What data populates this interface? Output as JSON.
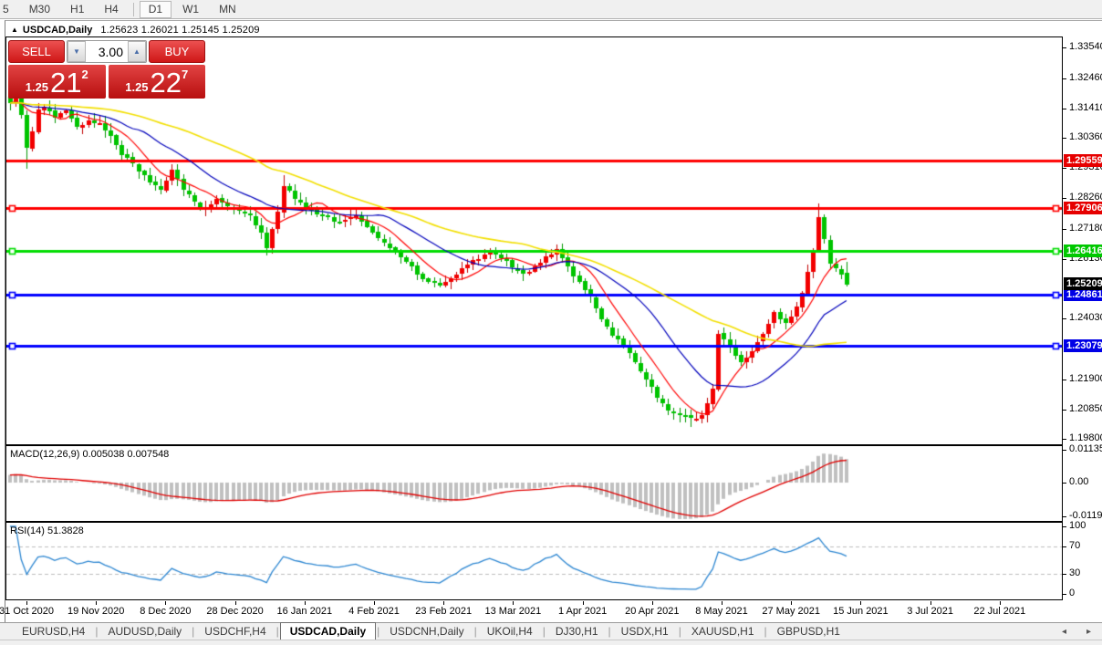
{
  "toolbar": {
    "timeframes": [
      {
        "label": "5",
        "active": false
      },
      {
        "label": "M30",
        "active": false
      },
      {
        "label": "H1",
        "active": false
      },
      {
        "label": "H4",
        "active": false
      },
      {
        "separator": true
      },
      {
        "label": "D1",
        "active": true
      },
      {
        "label": "W1",
        "active": false
      },
      {
        "label": "MN",
        "active": false
      }
    ]
  },
  "chart_window": {
    "title": {
      "marker": "▲",
      "symbol": "USDCAD,Daily",
      "ohlc": "1.25623 1.26021 1.25145 1.25209"
    },
    "trade_panel": {
      "sell_label": "SELL",
      "buy_label": "BUY",
      "volume": "3.00",
      "spin_down_icon": "▼",
      "spin_up_icon": "▲",
      "sell_price": {
        "small": "1.25",
        "big": "21",
        "sup": "2"
      },
      "buy_price": {
        "small": "1.25",
        "big": "22",
        "sup": "7"
      }
    }
  },
  "chart_data": {
    "type": "candlestick",
    "symbol": "USDCAD",
    "timeframe": "Daily",
    "color_convention": {
      "bull_up": "#F20000",
      "bull_border": "#C00000",
      "bear_down": "#00C400",
      "bear_border": "#009600"
    },
    "y_axis": {
      "ticks": [
        1.3354,
        1.3246,
        1.3141,
        1.3036,
        1.2931,
        1.2826,
        1.2718,
        1.2613,
        1.2403,
        1.219,
        1.2085,
        1.198
      ]
    },
    "x_axis": {
      "labels": [
        "31 Oct 2020",
        "19 Nov 2020",
        "8 Dec 2020",
        "28 Dec 2020",
        "16 Jan 2021",
        "4 Feb 2021",
        "23 Feb 2021",
        "13 Mar 2021",
        "1 Apr 2021",
        "20 Apr 2021",
        "8 May 2021",
        "27 May 2021",
        "15 Jun 2021",
        "3 Jul 2021",
        "22 Jul 2021"
      ]
    },
    "current_price": {
      "value": 1.25209,
      "badge_bg": "#000000"
    },
    "levels": [
      {
        "price": 1.29559,
        "color": "#FF0000",
        "badge_bg": "#E60000",
        "markers": false
      },
      {
        "price": 1.27906,
        "color": "#FF0000",
        "badge_bg": "#E60000",
        "markers": true
      },
      {
        "price": 1.26416,
        "color": "#00DC00",
        "badge_bg": "#00C800",
        "markers": true
      },
      {
        "price": 1.24861,
        "color": "#0000FF",
        "badge_bg": "#0000E6",
        "markers": true
      },
      {
        "price": 1.23079,
        "color": "#0000FF",
        "badge_bg": "#0000E6",
        "markers": true
      }
    ],
    "moving_averages": [
      {
        "period": 8,
        "color": "#FF0000",
        "width": 1.2
      },
      {
        "period": 20,
        "color": "#0000BB",
        "width": 1.2
      },
      {
        "period": 45,
        "color": "#F2DF00",
        "width": 1.6
      }
    ],
    "candles": {
      "count": 151,
      "seed": 7,
      "close_anchors": [
        [
          0,
          1.3165
        ],
        [
          1,
          1.3195
        ],
        [
          2,
          1.312
        ],
        [
          3,
          1.3005
        ],
        [
          4,
          1.306
        ],
        [
          5,
          1.313
        ],
        [
          6,
          1.315
        ],
        [
          8,
          1.3105
        ],
        [
          10,
          1.3135
        ],
        [
          12,
          1.307
        ],
        [
          14,
          1.31
        ],
        [
          16,
          1.3085
        ],
        [
          18,
          1.304
        ],
        [
          20,
          1.298
        ],
        [
          22,
          1.2945
        ],
        [
          25,
          1.288
        ],
        [
          27,
          1.285
        ],
        [
          29,
          1.292
        ],
        [
          31,
          1.2855
        ],
        [
          34,
          1.279
        ],
        [
          37,
          1.282
        ],
        [
          40,
          1.2785
        ],
        [
          43,
          1.276
        ],
        [
          45,
          1.27
        ],
        [
          46,
          1.265
        ],
        [
          48,
          1.278
        ],
        [
          49,
          1.287
        ],
        [
          51,
          1.282
        ],
        [
          53,
          1.279
        ],
        [
          56,
          1.276
        ],
        [
          59,
          1.274
        ],
        [
          62,
          1.277
        ],
        [
          65,
          1.2705
        ],
        [
          68,
          1.265
        ],
        [
          71,
          1.26
        ],
        [
          74,
          1.2545
        ],
        [
          77,
          1.2515
        ],
        [
          80,
          1.256
        ],
        [
          83,
          1.2605
        ],
        [
          86,
          1.2635
        ],
        [
          89,
          1.26
        ],
        [
          92,
          1.2555
        ],
        [
          95,
          1.26
        ],
        [
          98,
          1.2645
        ],
        [
          101,
          1.255
        ],
        [
          104,
          1.2485
        ],
        [
          106,
          1.24
        ],
        [
          108,
          1.234
        ],
        [
          110,
          1.231
        ],
        [
          112,
          1.225
        ],
        [
          114,
          1.219
        ],
        [
          116,
          1.213
        ],
        [
          118,
          1.2085
        ],
        [
          120,
          1.206
        ],
        [
          122,
          1.205
        ],
        [
          124,
          1.206
        ],
        [
          126,
          1.216
        ],
        [
          127,
          1.2355
        ],
        [
          129,
          1.23
        ],
        [
          131,
          1.2245
        ],
        [
          133,
          1.229
        ],
        [
          135,
          1.2345
        ],
        [
          137,
          1.242
        ],
        [
          139,
          1.239
        ],
        [
          141,
          1.244
        ],
        [
          142,
          1.249
        ],
        [
          144,
          1.264
        ],
        [
          145,
          1.2755
        ],
        [
          146,
          1.268
        ],
        [
          147,
          1.26
        ],
        [
          148,
          1.2575
        ],
        [
          149,
          1.256
        ],
        [
          150,
          1.25209
        ]
      ],
      "wick_overrides": {
        "3": {
          "low": 1.2928
        },
        "49": {
          "high": 1.2906
        },
        "122": {
          "low": 1.2022
        },
        "145": {
          "high": 1.2807
        }
      },
      "last": {
        "open": 1.25623,
        "high": 1.26021,
        "low": 1.25145,
        "close": 1.25209
      }
    },
    "indicators": {
      "macd": {
        "name": "MACD(12,26,9)",
        "values_text": "0.005038 0.007548",
        "fast": 12,
        "slow": 26,
        "signal": 9,
        "histogram_color": "#C0C0C0",
        "signal_color": "#E00000",
        "axis": [
          {
            "text": "0.01135",
            "value": 0.01135
          },
          {
            "text": "0.00",
            "value": 0
          },
          {
            "text": "-0.011904",
            "value": -0.0119
          }
        ]
      },
      "rsi": {
        "name": "RSI(14)",
        "value_text": "51.3828",
        "period": 14,
        "line_color": "#2C86D1",
        "level_line_color": "#BDBDBD",
        "levels": [
          70,
          30
        ],
        "axis": [
          {
            "text": "100",
            "value": 100
          },
          {
            "text": "70",
            "value": 70
          },
          {
            "text": "30",
            "value": 30
          },
          {
            "text": "0",
            "value": 0
          }
        ]
      }
    }
  },
  "tabs": {
    "items": [
      {
        "label": "EURUSD,H4",
        "active": false
      },
      {
        "label": "AUDUSD,Daily",
        "active": false
      },
      {
        "label": "USDCHF,H4",
        "active": false
      },
      {
        "label": "USDCAD,Daily",
        "active": true
      },
      {
        "label": "USDCNH,Daily",
        "active": false
      },
      {
        "label": "UKOil,H4",
        "active": false
      },
      {
        "label": "DJ30,H1",
        "active": false
      },
      {
        "label": "USDX,H1",
        "active": false
      },
      {
        "label": "XAUUSD,H1",
        "active": false
      },
      {
        "label": "GBPUSD,H1",
        "active": false
      }
    ],
    "left_arrow": "◂",
    "right_arrow": "▸"
  }
}
